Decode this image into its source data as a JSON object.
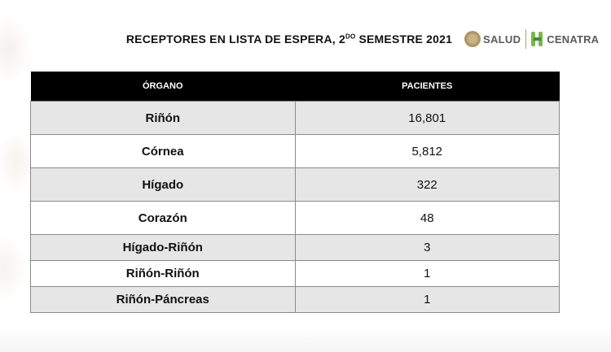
{
  "title": {
    "before_sup": "RECEPTORES EN LISTA DE ESPERA, 2",
    "sup": "DO",
    "after_sup": " SEMESTRE 2021"
  },
  "logos": {
    "salud": "SALUD",
    "cenatra": "CENATRA"
  },
  "table": {
    "headers": [
      "ÓRGANO",
      "PACIENTES"
    ],
    "rows": [
      {
        "organ": "Riñón",
        "patients": "16,801"
      },
      {
        "organ": "Córnea",
        "patients": "5,812"
      },
      {
        "organ": "Hígado",
        "patients": "322"
      },
      {
        "organ": "Corazón",
        "patients": "48"
      },
      {
        "organ": "Hígado-Riñón",
        "patients": "3"
      },
      {
        "organ": "Riñón-Riñón",
        "patients": "1"
      },
      {
        "organ": "Riñón-Páncreas",
        "patients": "1"
      }
    ]
  }
}
